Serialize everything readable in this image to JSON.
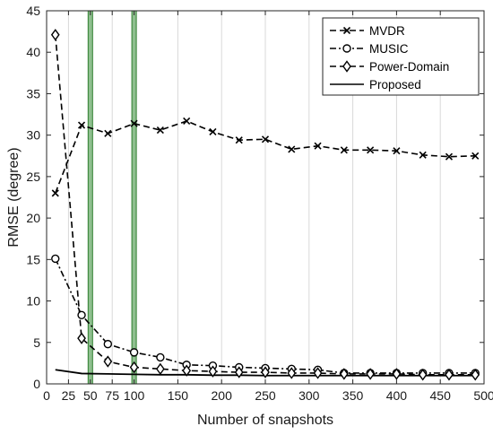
{
  "chart_data": {
    "type": "line",
    "xlabel": "Number of snapshots",
    "ylabel": "RMSE (degree)",
    "xlim": [
      0,
      500
    ],
    "ylim": [
      0,
      45
    ],
    "xticks": [
      "0",
      "25",
      "50",
      "75",
      "100",
      "150",
      "200",
      "250",
      "300",
      "350",
      "400",
      "450",
      "500"
    ],
    "xtick_values": [
      0,
      25,
      50,
      75,
      100,
      150,
      200,
      250,
      300,
      350,
      400,
      450,
      500
    ],
    "yticks": [
      "0",
      "5",
      "10",
      "15",
      "20",
      "25",
      "30",
      "35",
      "40",
      "45"
    ],
    "ytick_values": [
      0,
      5,
      10,
      15,
      20,
      25,
      30,
      35,
      40,
      45
    ],
    "grid": "vertical",
    "legend_position": "top-right",
    "highlight_bands": [
      50,
      100
    ],
    "x": [
      10,
      40,
      70,
      100,
      130,
      160,
      190,
      220,
      250,
      280,
      310,
      340,
      370,
      400,
      430,
      460,
      490
    ],
    "series": [
      {
        "name": "MVDR",
        "marker": "x",
        "dash": "dashed",
        "values": [
          23.0,
          31.2,
          30.2,
          31.4,
          30.6,
          31.7,
          30.4,
          29.4,
          29.5,
          28.3,
          28.7,
          28.2,
          28.2,
          28.1,
          27.6,
          27.4,
          27.5
        ]
      },
      {
        "name": "MUSIC",
        "marker": "circle",
        "dash": "dashdot",
        "values": [
          15.1,
          8.3,
          4.8,
          3.8,
          3.2,
          2.3,
          2.2,
          2.0,
          1.9,
          1.8,
          1.7,
          1.3,
          1.3,
          1.3,
          1.3,
          1.3,
          1.3
        ]
      },
      {
        "name": "Power-Domain",
        "marker": "diamond",
        "dash": "dashed",
        "values": [
          42.1,
          5.5,
          2.7,
          2.0,
          1.8,
          1.6,
          1.5,
          1.4,
          1.4,
          1.3,
          1.3,
          1.2,
          1.2,
          1.2,
          1.1,
          1.1,
          1.1
        ]
      },
      {
        "name": "Proposed",
        "marker": "none",
        "dash": "solid",
        "values": [
          1.7,
          1.25,
          1.2,
          1.15,
          1.1,
          1.1,
          1.05,
          1.05,
          1.0,
          1.0,
          1.0,
          1.0,
          1.0,
          1.0,
          1.0,
          1.0,
          1.0
        ]
      }
    ]
  },
  "colors": {
    "line": "#000000",
    "grid": "#d9d9d9",
    "band_fill": "#8fbf8f",
    "band_edge": "#2f7f2f",
    "axis": "#262626"
  }
}
